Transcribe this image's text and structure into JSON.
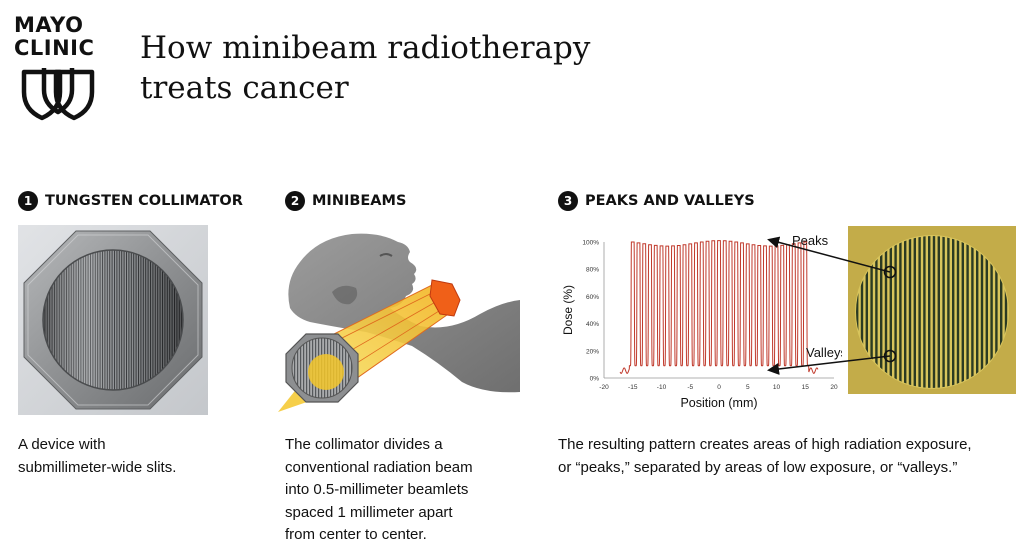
{
  "logo": {
    "line1": "MAYO",
    "line2": "CLINIC",
    "icon": "mayo-three-shields-icon"
  },
  "title": {
    "line1": "How minibeam radiotherapy",
    "line2": "treats cancer"
  },
  "steps": [
    {
      "number": "1",
      "label": "TUNGSTEN COLLIMATOR",
      "description": [
        "A device with",
        "submillimeter-wide slits."
      ]
    },
    {
      "number": "2",
      "label": "MINIBEAMS",
      "description": [
        "The collimator divides a",
        "conventional radiation beam",
        "into 0.5-millimeter beamlets",
        "spaced 1 millimeter apart",
        "from center to center."
      ]
    },
    {
      "number": "3",
      "label": "PEAKS AND VALLEYS",
      "description": [
        "The resulting pattern creates areas of high radiation exposure,",
        "or “peaks,” separated by areas of low exposure, or “valleys.”"
      ]
    }
  ],
  "chart_data": {
    "type": "line",
    "xlabel": "Position (mm)",
    "ylabel": "Dose (%)",
    "xlim": [
      -20,
      20
    ],
    "ylim": [
      0,
      100
    ],
    "x_ticks": [
      "-20",
      "-15",
      "-10",
      "-5",
      "0",
      "5",
      "10",
      "15",
      "20"
    ],
    "y_ticks": [
      "0%",
      "20%",
      "40%",
      "60%",
      "80%",
      "100%"
    ],
    "grid": false,
    "annotations": [
      "Peaks",
      "Valleys"
    ],
    "series": [
      {
        "peak_spacing_mm": 1,
        "peak_positions_range_mm": [
          -15,
          15
        ],
        "peak_dose_percent": [
          97,
          101
        ],
        "valley_dose_percent": 9,
        "color": "#c0392b"
      }
    ]
  },
  "colors": {
    "curve": "#c0392b",
    "beam": "#f2c81e",
    "film_bg": "#c9b24e",
    "film_stripes": "#2b3a22"
  }
}
